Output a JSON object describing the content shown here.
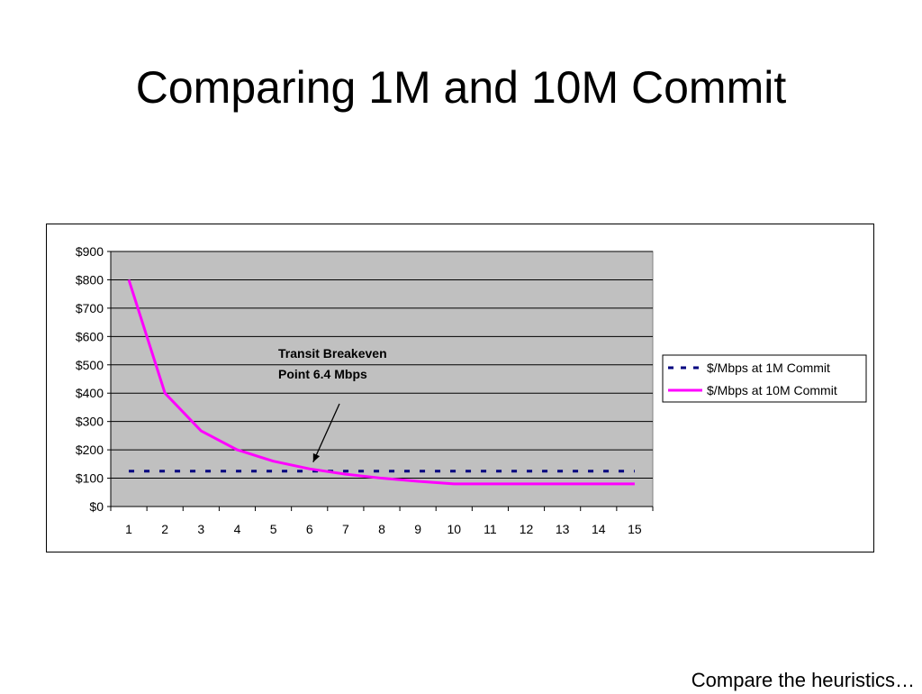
{
  "slide": {
    "title": "Comparing 1M and 10M Commit",
    "footer": "Compare the heuristics…"
  },
  "chart_data": {
    "type": "line",
    "x": [
      1,
      2,
      3,
      4,
      5,
      6,
      7,
      8,
      9,
      10,
      11,
      12,
      13,
      14,
      15
    ],
    "categories": [
      "1",
      "2",
      "3",
      "4",
      "5",
      "6",
      "7",
      "8",
      "9",
      "10",
      "11",
      "12",
      "13",
      "14",
      "15"
    ],
    "series": [
      {
        "name": "$/Mbps at 1M Commit",
        "values": [
          125,
          125,
          125,
          125,
          125,
          125,
          125,
          125,
          125,
          125,
          125,
          125,
          125,
          125,
          125
        ],
        "color": "#000080",
        "style": "dashed"
      },
      {
        "name": "$/Mbps at 10M Commit",
        "values": [
          800,
          400,
          267,
          200,
          160,
          133,
          114,
          100,
          89,
          80,
          80,
          80,
          80,
          80,
          80
        ],
        "color": "#FF00FF",
        "style": "solid"
      }
    ],
    "ylim": [
      0,
      900
    ],
    "yticks": [
      "$0",
      "$100",
      "$200",
      "$300",
      "$400",
      "$500",
      "$600",
      "$700",
      "$800",
      "$900"
    ],
    "xlabel": "",
    "ylabel": "",
    "grid": true,
    "plot_background": "#C0C0C0",
    "legend_position": "right",
    "annotation": {
      "lines": [
        "Transit Breakeven",
        "Point 6.4 Mbps"
      ],
      "x": 6.4,
      "y": 125
    }
  }
}
